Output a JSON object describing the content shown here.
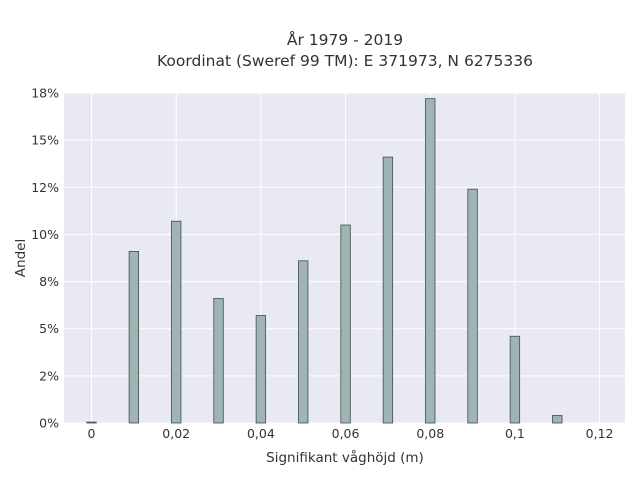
{
  "chart_data": {
    "type": "bar",
    "title": "År 1979 - 2019",
    "subtitle": "Koordinat (Sweref 99 TM): E 371973, N 6275336",
    "xlabel": "Signifikant våghöjd (m)",
    "ylabel": "Andel",
    "x": [
      0,
      0.01,
      0.02,
      0.03,
      0.04,
      0.05,
      0.06,
      0.07,
      0.08,
      0.09,
      0.1,
      0.11
    ],
    "values": [
      0.05,
      9.1,
      10.7,
      6.6,
      5.7,
      8.6,
      10.5,
      14.1,
      17.2,
      12.4,
      4.6,
      0.4
    ],
    "value_unit": "%",
    "xlim": [
      -0.0065,
      0.126
    ],
    "ylim": [
      0,
      17.5
    ],
    "xticks": [
      0,
      0.02,
      0.04,
      0.06,
      0.08,
      0.1,
      0.12
    ],
    "xtick_labels": [
      "0",
      "0,02",
      "0,04",
      "0,06",
      "0,08",
      "0,1",
      "0,12"
    ],
    "yticks": [
      0,
      2.5,
      5,
      7.5,
      10,
      12.5,
      15,
      17.5
    ],
    "ytick_labels": [
      "0%",
      "2%",
      "5%",
      "8%",
      "10%",
      "12%",
      "15%",
      "18%"
    ],
    "grid": true,
    "colors": {
      "background": "#e8e9f2",
      "grid": "#ffffff",
      "bar_fill": "#a0b4b4",
      "bar_stroke": "#3e4f4f"
    }
  }
}
